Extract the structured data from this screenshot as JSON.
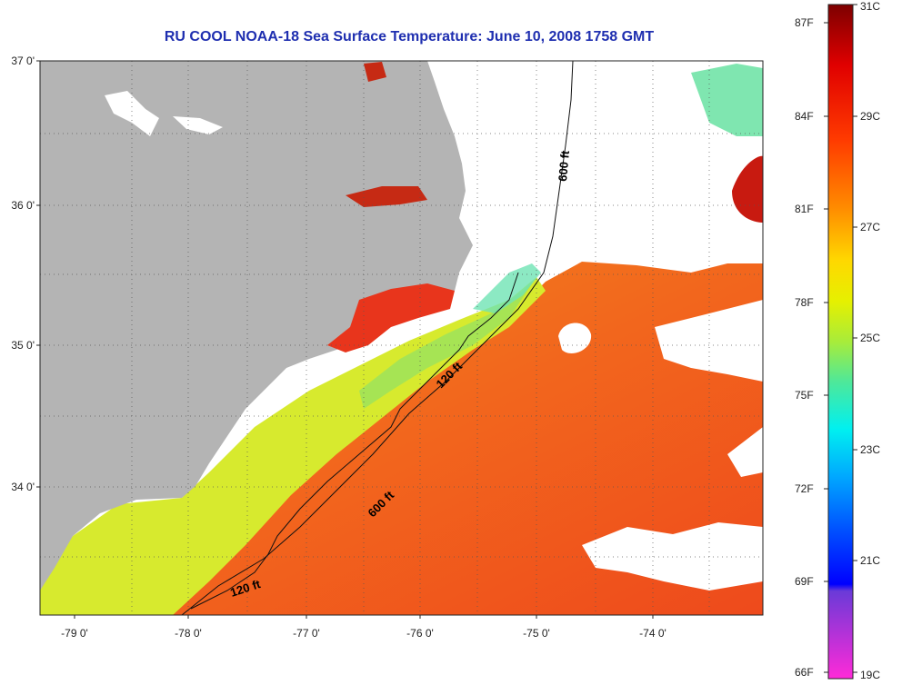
{
  "title": "RU COOL  NOAA-18  Sea Surface Temperature:  June 10, 2008 1758 GMT",
  "lat_labels": [
    "37 0'",
    "36 0'",
    "35 0'",
    "34 0'"
  ],
  "lon_labels": [
    "-79 0'",
    "-78 0'",
    "-77 0'",
    "-76 0'",
    "-75 0'",
    "-74 0'"
  ],
  "contours": [
    {
      "label": "600 ft"
    },
    {
      "label": "120 ft"
    },
    {
      "label": "600 ft"
    },
    {
      "label": "120 ft"
    }
  ],
  "colorbar": {
    "fahrenheit": [
      "87F",
      "84F",
      "81F",
      "78F",
      "75F",
      "72F",
      "69F",
      "66F"
    ],
    "celsius": [
      "31C",
      "29C",
      "27C",
      "25C",
      "23C",
      "21C",
      "19C"
    ]
  },
  "colors": {
    "land": "#b4b4b4",
    "title": "#1f2fb0",
    "warm": "#f2561d",
    "cool": "#cdea2a"
  }
}
